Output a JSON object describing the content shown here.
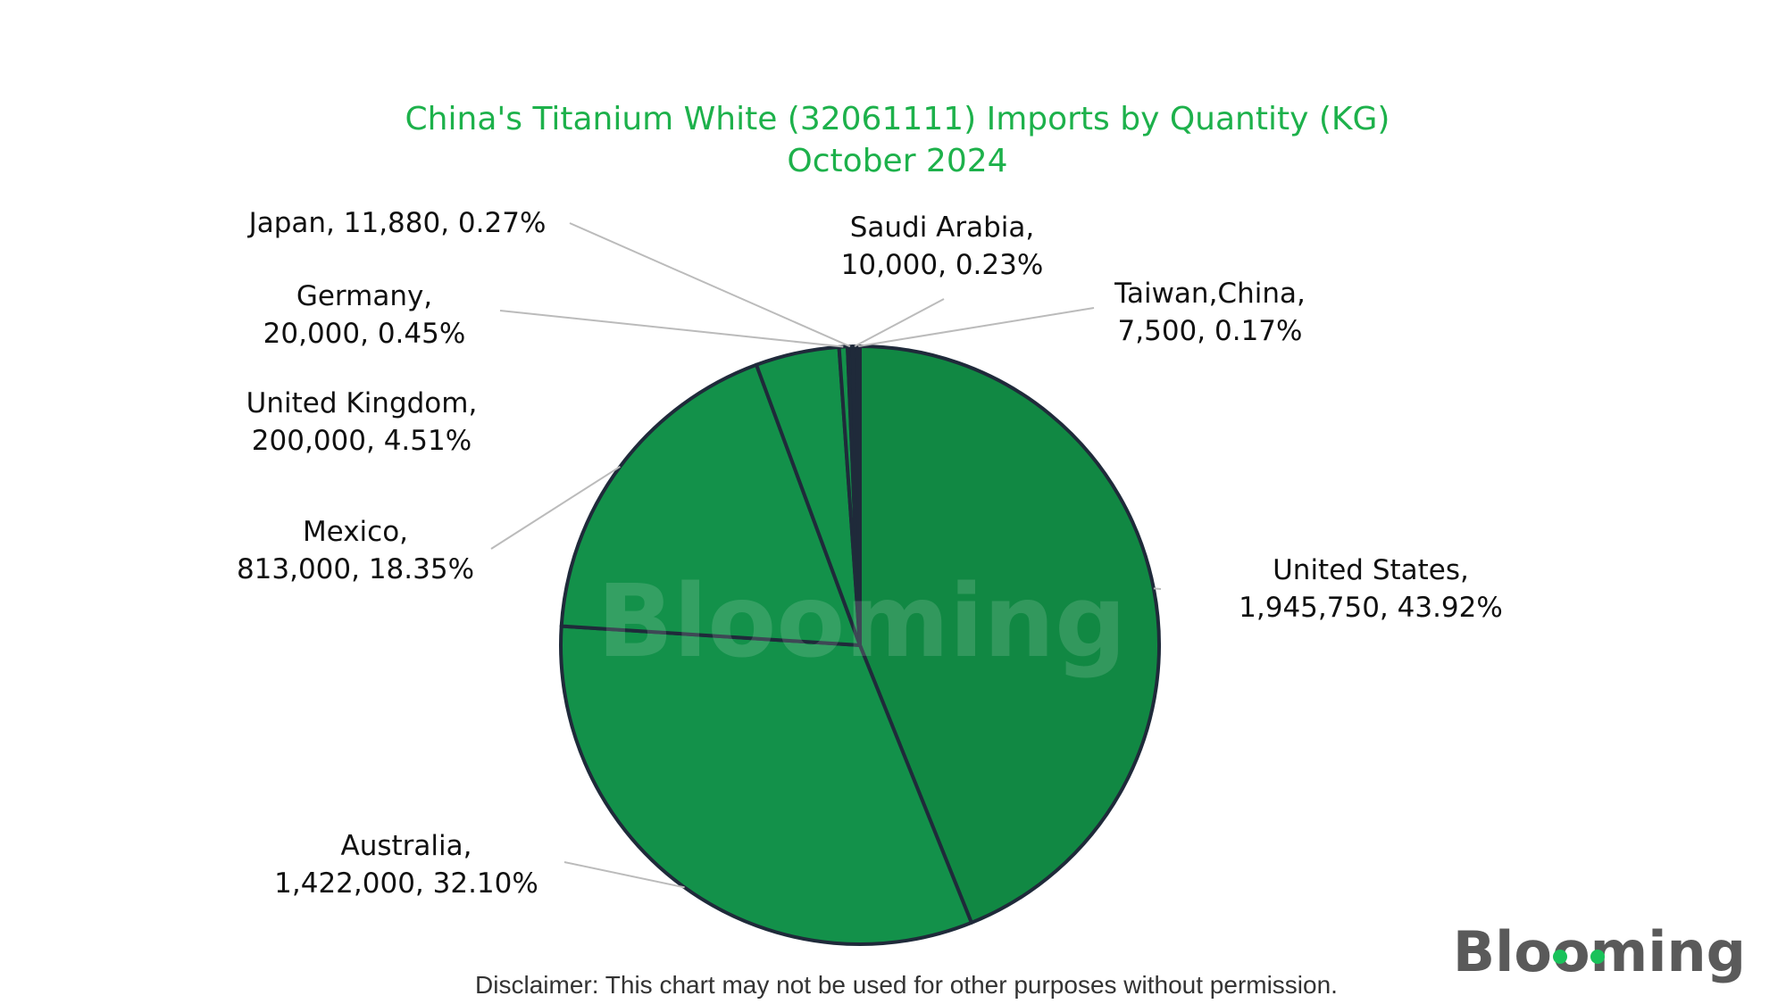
{
  "chart_data": {
    "type": "pie",
    "title": "China's Titanium White (32061111) Imports by Quantity (KG)",
    "subtitle": "October 2024",
    "slices": [
      {
        "name": "United States",
        "value": 1945750,
        "value_label": "1,945,750",
        "percent_label": "43.92%",
        "color": "#118843"
      },
      {
        "name": "Australia",
        "value": 1422000,
        "value_label": "1,422,000",
        "percent_label": "32.10%",
        "color": "#13914a"
      },
      {
        "name": "Mexico",
        "value": 813000,
        "value_label": "813,000",
        "percent_label": "18.35%",
        "color": "#13914a"
      },
      {
        "name": "United Kingdom",
        "value": 200000,
        "value_label": "200,000",
        "percent_label": "4.51%",
        "color": "#13914a"
      },
      {
        "name": "Germany",
        "value": 20000,
        "value_label": "20,000",
        "percent_label": "0.45%",
        "color": "#13914a"
      },
      {
        "name": "Japan",
        "value": 11880,
        "value_label": "11,880",
        "percent_label": "0.27%",
        "color": "#13914a"
      },
      {
        "name": "Saudi Arabia",
        "value": 10000,
        "value_label": "10,000",
        "percent_label": "0.23%",
        "color": "#13914a"
      },
      {
        "name": "Taiwan,China",
        "value": 7500,
        "value_label": "7,500",
        "percent_label": "0.17%",
        "color": "#13914a"
      }
    ],
    "start_angle_deg": 0,
    "direction": "clockwise",
    "legend": "none",
    "title_color": "#1db14b",
    "slice_border_color": "#1f2a3a",
    "leader_line_color": "#bbbbbb"
  },
  "watermark": "Blooming",
  "logo": "Blooming",
  "disclaimer": "Disclaimer: This chart may not be used for other purposes without permission."
}
